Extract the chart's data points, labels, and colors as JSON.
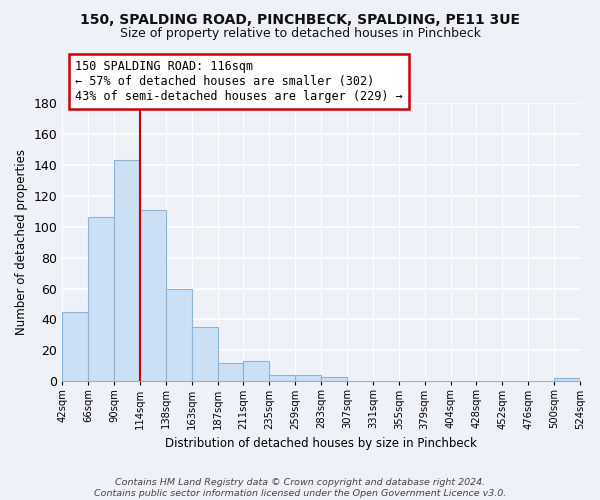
{
  "title": "150, SPALDING ROAD, PINCHBECK, SPALDING, PE11 3UE",
  "subtitle": "Size of property relative to detached houses in Pinchbeck",
  "xlabel": "Distribution of detached houses by size in Pinchbeck",
  "ylabel": "Number of detached properties",
  "bar_values": [
    45,
    106,
    143,
    111,
    60,
    35,
    12,
    13,
    4,
    4,
    3,
    0,
    0,
    0,
    0,
    0,
    0,
    0,
    0,
    2
  ],
  "bar_labels": [
    "42sqm",
    "66sqm",
    "90sqm",
    "114sqm",
    "138sqm",
    "163sqm",
    "187sqm",
    "211sqm",
    "235sqm",
    "259sqm",
    "283sqm",
    "307sqm",
    "331sqm",
    "355sqm",
    "379sqm",
    "404sqm",
    "428sqm",
    "452sqm",
    "476sqm",
    "500sqm",
    "524sqm"
  ],
  "bar_color": "#cce0f5",
  "bar_edge_color": "#8ab4d8",
  "vline_color": "#cc0000",
  "ylim": [
    0,
    180
  ],
  "yticks": [
    0,
    20,
    40,
    60,
    80,
    100,
    120,
    140,
    160,
    180
  ],
  "annotation_line1": "150 SPALDING ROAD: 116sqm",
  "annotation_line2": "← 57% of detached houses are smaller (302)",
  "annotation_line3": "43% of semi-detached houses are larger (229) →",
  "annotation_box_color": "#ffffff",
  "annotation_box_edge": "#cc0000",
  "footer": "Contains HM Land Registry data © Crown copyright and database right 2024.\nContains public sector information licensed under the Open Government Licence v3.0.",
  "bg_color": "#eef2f8"
}
